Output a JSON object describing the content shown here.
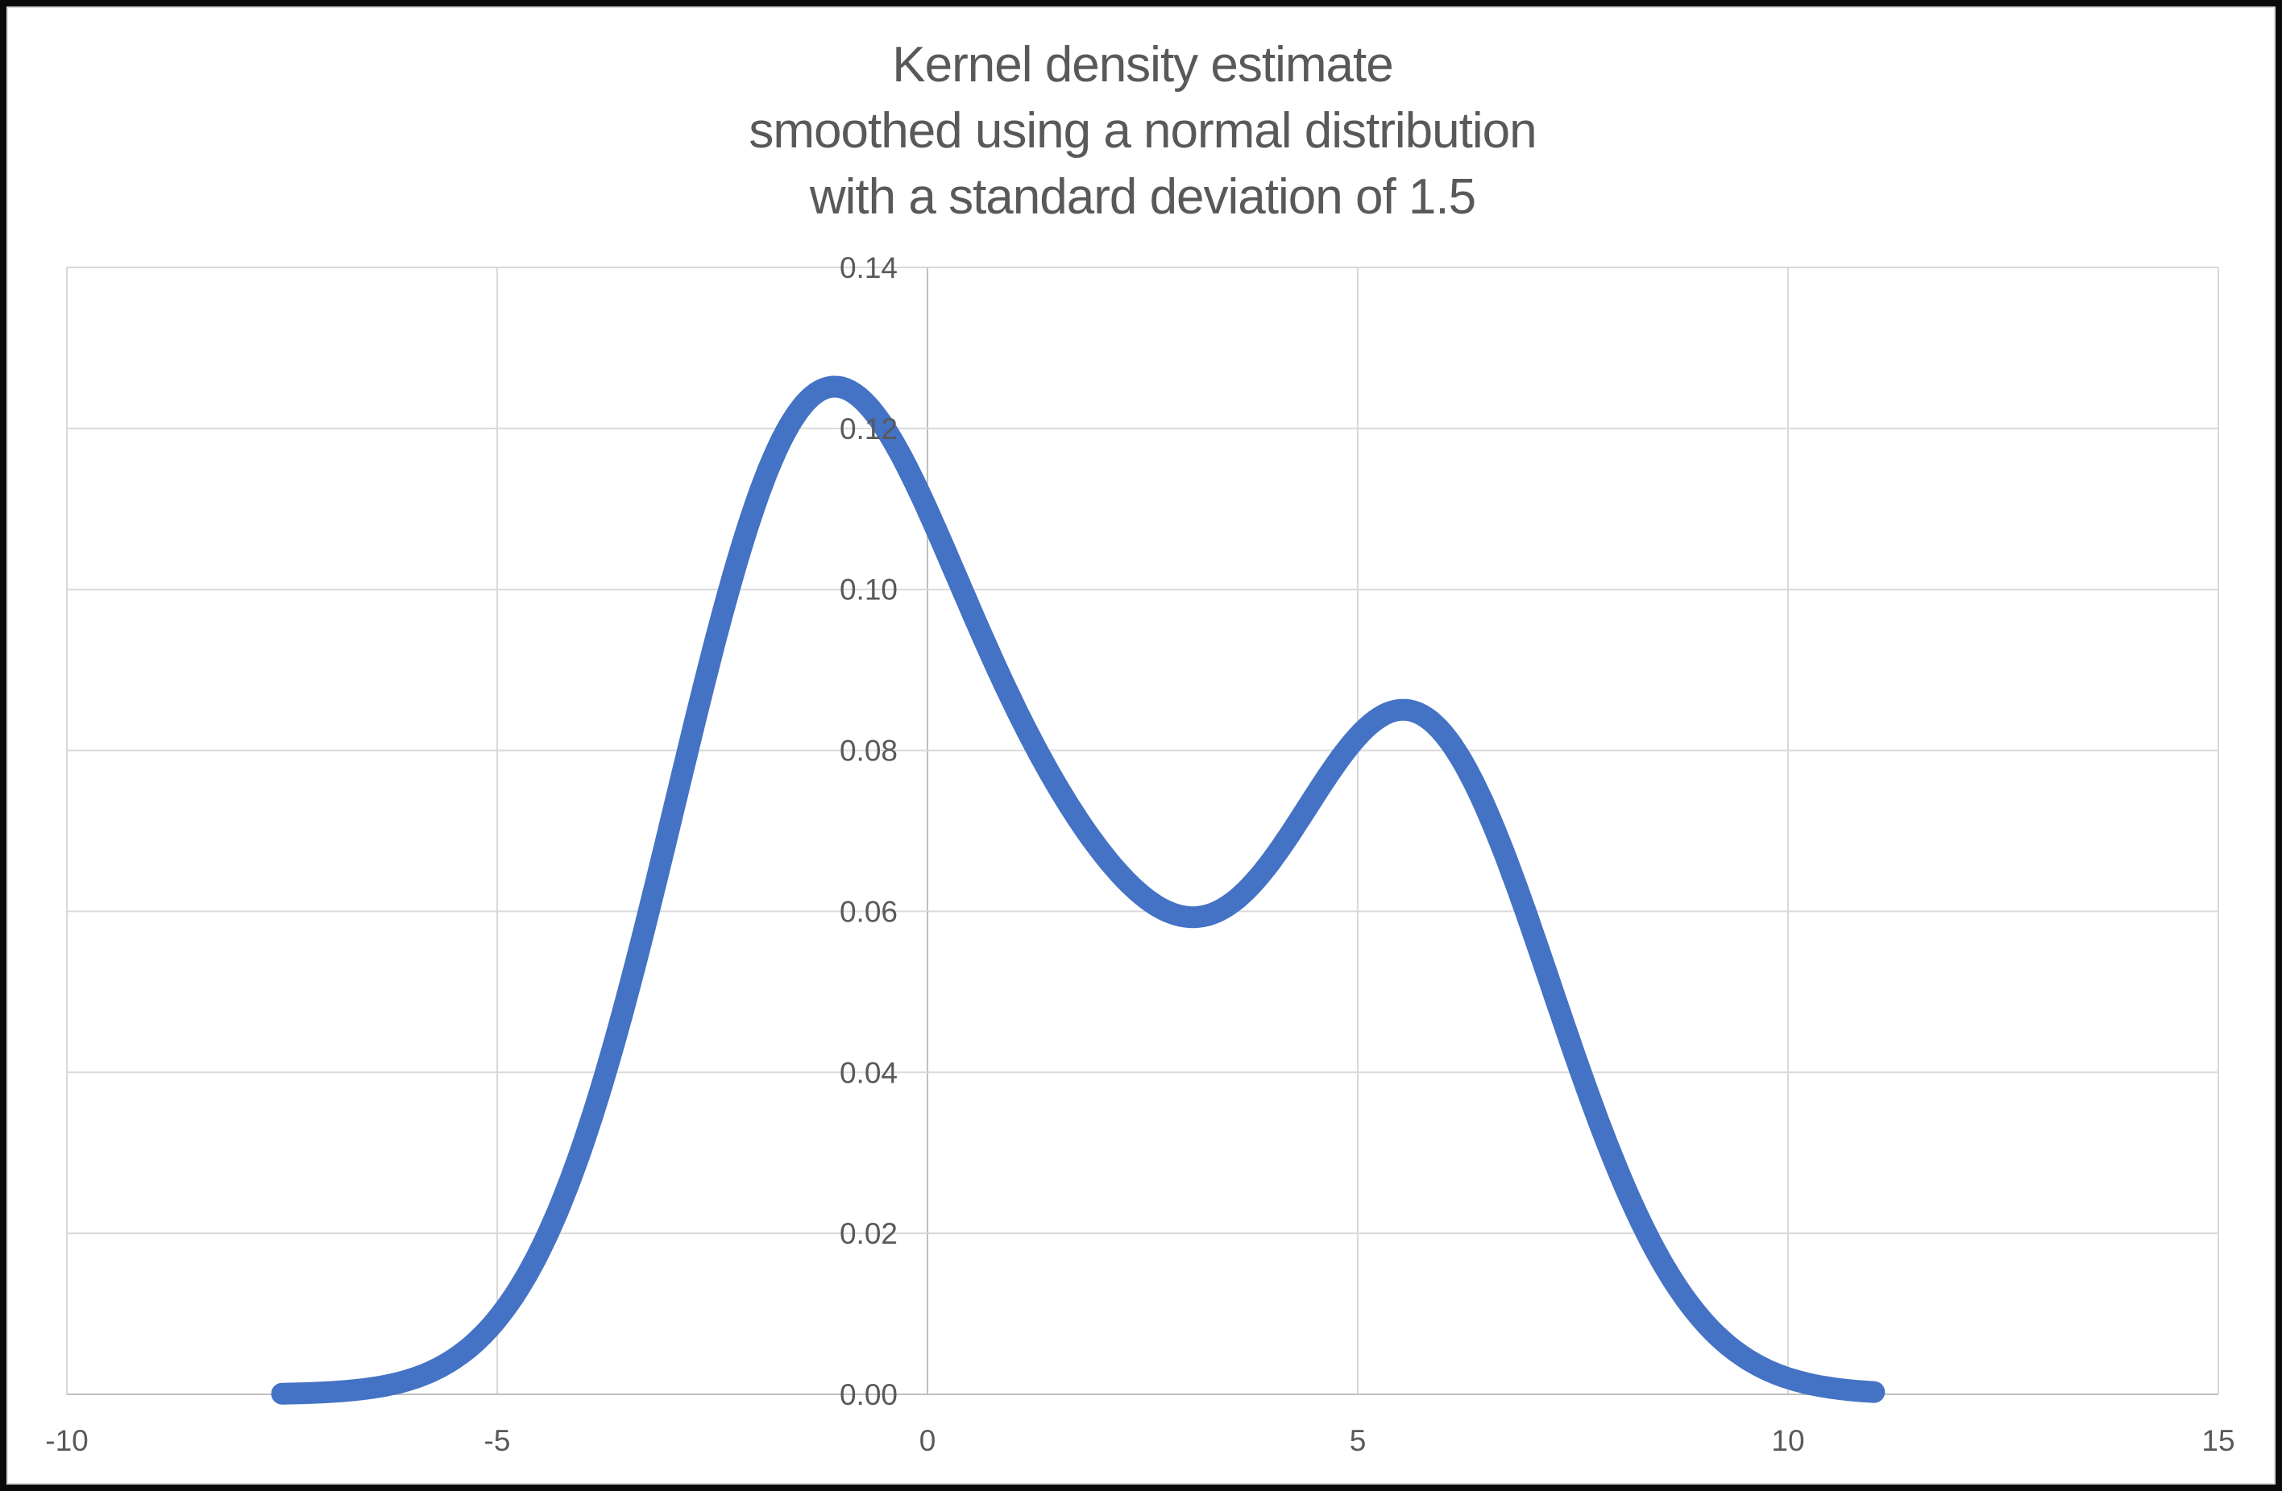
{
  "frame": {
    "outer_border_color": "#0a0a0a",
    "inner_border_color": "#d9d9d9",
    "background": "#ffffff"
  },
  "chart_data": {
    "type": "line",
    "title_lines": [
      "Kernel density estimate",
      "smoothed using a normal distribution",
      "with a standard deviation of 1.5"
    ],
    "title_color": "#595959",
    "xlim": [
      -10,
      15
    ],
    "ylim": [
      0,
      0.14
    ],
    "x_tick_labels": [
      "-10",
      "-5",
      "0",
      "5",
      "10",
      "15"
    ],
    "y_tick_labels": [
      "0.00",
      "0.02",
      "0.04",
      "0.06",
      "0.08",
      "0.10",
      "0.12",
      "0.14"
    ],
    "grid": true,
    "legend": "none",
    "gridline_color": "#d9d9d9",
    "axis_line_color": "#bfbfbf",
    "tick_label_color": "#595959",
    "tick_label_font_size": 37,
    "series": [
      {
        "name": "kernel-density-estimate",
        "color": "#4472C4",
        "stroke_width": 27,
        "x_start": -7.5,
        "x_end": 11,
        "kde": {
          "kernel": "normal",
          "bandwidth_sd": 1.5,
          "sample_points": [
            -2.1,
            -1.3,
            -0.4,
            1.9,
            5.1,
            6.2
          ]
        },
        "key_points": [
          {
            "x": -7.5,
            "y": 0.0001
          },
          {
            "x": -5.0,
            "y": 0.009
          },
          {
            "x": -2.5,
            "y": 0.092
          },
          {
            "x": -1.0,
            "y": 0.125
          },
          {
            "x": 0.0,
            "y": 0.11
          },
          {
            "x": 3.1,
            "y": 0.059
          },
          {
            "x": 5.5,
            "y": 0.085
          },
          {
            "x": 8.0,
            "y": 0.028
          },
          {
            "x": 11.0,
            "y": 0.0003
          }
        ]
      }
    ]
  }
}
